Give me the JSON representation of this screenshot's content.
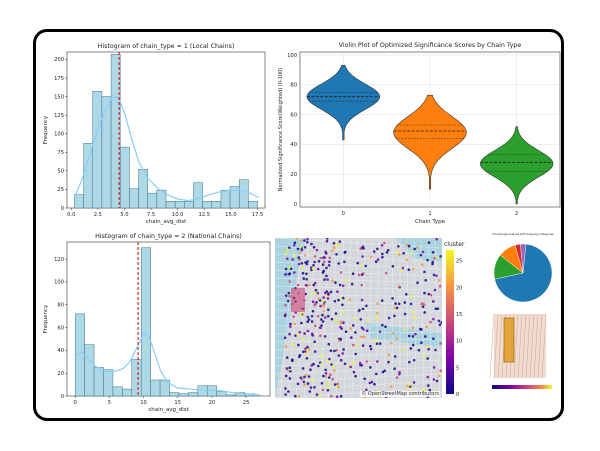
{
  "chart_data": [
    {
      "id": "hist_local",
      "type": "bar",
      "title": "Histogram of chain_type = 1 (Local Chains)",
      "xlabel": "chain_avg_dist",
      "ylabel": "Frequency",
      "xlim": [
        -0.4,
        18.2
      ],
      "ylim": [
        0,
        210
      ],
      "xticks": [
        "0.0",
        "2.5",
        "5.0",
        "7.5",
        "10.0",
        "12.5",
        "15.0",
        "17.5"
      ],
      "xtick_values": [
        0,
        2.5,
        5,
        7.5,
        10,
        12.5,
        15,
        17.5
      ],
      "yticks": [
        "0",
        "25",
        "50",
        "75",
        "100",
        "125",
        "150",
        "175",
        "200"
      ],
      "ytick_values": [
        0,
        25,
        50,
        75,
        100,
        125,
        150,
        175,
        200
      ],
      "bin_start": 0.3,
      "bin_width": 0.86,
      "values": [
        18,
        87,
        157,
        150,
        207,
        82,
        26,
        52,
        20,
        24,
        9,
        9,
        9,
        34,
        9,
        9,
        24,
        29,
        38,
        9
      ],
      "mean_line": 4.5,
      "kde": [
        [
          0.3,
          14
        ],
        [
          1.0,
          38
        ],
        [
          1.8,
          75
        ],
        [
          2.6,
          110
        ],
        [
          3.2,
          132
        ],
        [
          3.8,
          148
        ],
        [
          4.4,
          150
        ],
        [
          5.0,
          128
        ],
        [
          5.7,
          92
        ],
        [
          6.4,
          60
        ],
        [
          7.2,
          40
        ],
        [
          8.0,
          28
        ],
        [
          9.0,
          18
        ],
        [
          10.0,
          12
        ],
        [
          11.0,
          10
        ],
        [
          12.0,
          13
        ],
        [
          13.0,
          18
        ],
        [
          14.0,
          22
        ],
        [
          15.0,
          24
        ],
        [
          16.0,
          24
        ],
        [
          17.0,
          19
        ],
        [
          17.6,
          14
        ]
      ]
    },
    {
      "id": "violin",
      "type": "violin",
      "title": "Violin Plot of Optimized Significance Scores by Chain Type",
      "xlabel": "Chain Type",
      "ylabel": "Normalized Significance Score(Weighted) (0-100)",
      "ylim": [
        -2,
        102
      ],
      "yticks": [
        "0",
        "20",
        "40",
        "60",
        "80",
        "100"
      ],
      "ytick_values": [
        0,
        20,
        40,
        60,
        80,
        100
      ],
      "categories": [
        "0",
        "1",
        "2"
      ],
      "series": [
        {
          "color": "#1f77b4",
          "min": 43,
          "max": 93,
          "center": 72,
          "quartiles": [
            69,
            72,
            75
          ]
        },
        {
          "color": "#ff7f0e",
          "min": 10,
          "max": 73,
          "center": 48,
          "quartiles": [
            44,
            49,
            53
          ]
        },
        {
          "color": "#2ca02c",
          "min": 0,
          "max": 52,
          "center": 27,
          "quartiles": [
            22,
            28,
            33
          ]
        }
      ]
    },
    {
      "id": "hist_national",
      "type": "bar",
      "title": "Histogram of chain_type = 2 (National Chains)",
      "xlabel": "chain_avg_dist",
      "ylabel": "Frequency",
      "xlim": [
        -1.2,
        28.5
      ],
      "ylim": [
        0,
        135
      ],
      "xticks": [
        "0",
        "5",
        "10",
        "15",
        "20",
        "25"
      ],
      "xtick_values": [
        0,
        5,
        10,
        15,
        20,
        25
      ],
      "yticks": [
        "0",
        "20",
        "40",
        "60",
        "80",
        "100",
        "120"
      ],
      "ytick_values": [
        0,
        20,
        40,
        60,
        80,
        100,
        120
      ],
      "bin_start": 0,
      "bin_width": 1.38,
      "values": [
        72,
        45,
        25,
        23,
        8,
        6,
        32,
        130,
        14,
        14,
        3,
        2,
        3,
        9,
        9,
        4,
        1,
        3,
        2,
        0
      ],
      "mean_line": 9.2,
      "kde": [
        [
          0,
          35
        ],
        [
          1.0,
          38
        ],
        [
          2.0,
          32
        ],
        [
          3.0,
          26
        ],
        [
          4.0,
          22
        ],
        [
          5.0,
          21
        ],
        [
          6.0,
          22
        ],
        [
          7.0,
          24
        ],
        [
          8.0,
          30
        ],
        [
          9.0,
          42
        ],
        [
          10.0,
          55
        ],
        [
          10.8,
          52
        ],
        [
          11.6,
          38
        ],
        [
          12.5,
          22
        ],
        [
          13.5,
          12
        ],
        [
          15,
          7
        ],
        [
          17,
          6
        ],
        [
          19,
          5
        ],
        [
          21,
          5
        ],
        [
          23,
          3
        ],
        [
          25,
          2
        ],
        [
          27,
          1
        ]
      ]
    },
    {
      "id": "pie_small",
      "type": "pie",
      "title": "Price Range Analysis with Subgroup Categories",
      "values": [
        70,
        14,
        10,
        3,
        3
      ],
      "colors": [
        "#1f77b4",
        "#2ca02c",
        "#ff7f0e",
        "#d62728",
        "#9467bd"
      ],
      "labels": [
        "",
        "",
        "",
        "",
        ""
      ]
    }
  ],
  "map": {
    "colorbar_title": "cluster",
    "colorbar_ticks": [
      "0",
      "5",
      "10",
      "15",
      "20",
      "25"
    ],
    "attribution": "© OpenStreetMap contributors"
  },
  "colors": {
    "hist_fill": "#add8e6",
    "hist_edge": "#3f6f86",
    "kde_line": "#87cefa",
    "mean_line": "#cc0000"
  }
}
